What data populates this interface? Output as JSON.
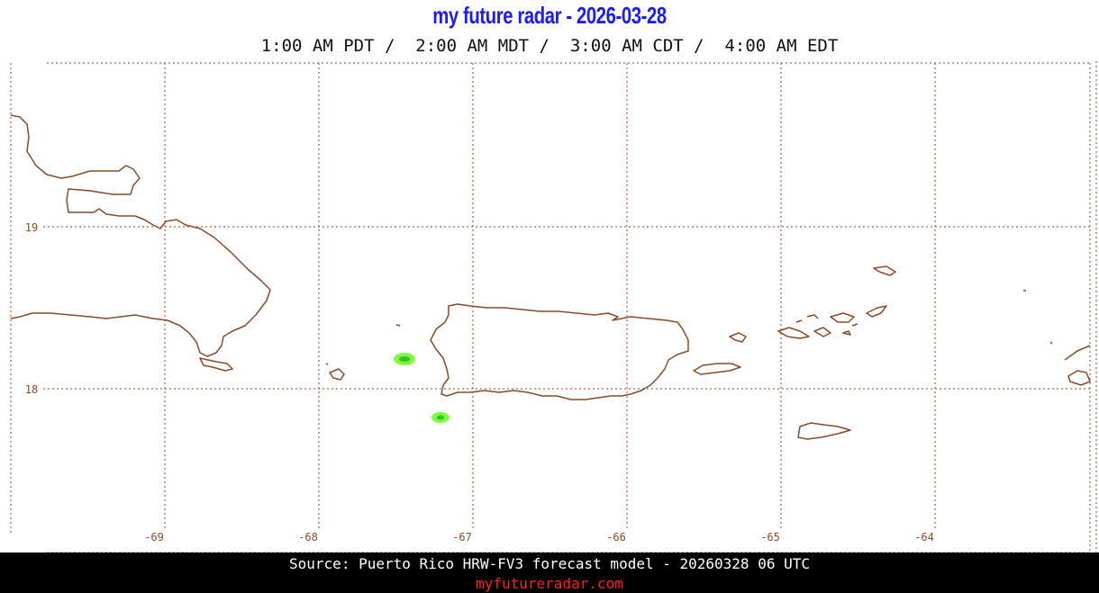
{
  "title": "my future radar - 2026-03-28",
  "subtitle": "1:00 AM PDT /  2:00 AM MDT /  3:00 AM CDT /  4:00 AM EDT",
  "footer": {
    "source": "Source: Puerto Rico HRW-FV3 forecast model - 20260328 06 UTC",
    "site": "myfutureradar.com"
  },
  "axes": {
    "lon_labels": [
      "-69",
      "-68",
      "-67",
      "-66",
      "-65",
      "-64"
    ],
    "lat_labels": [
      "19",
      "18"
    ]
  },
  "colors": {
    "title": "#1a1aff",
    "coastline": "#8b4a2b",
    "grid": "#8b4a2b",
    "echo_light": "#7cff3a",
    "echo_core": "#2fbf2f",
    "footer_bg": "#000000",
    "footer_site": "#ff2020"
  }
}
